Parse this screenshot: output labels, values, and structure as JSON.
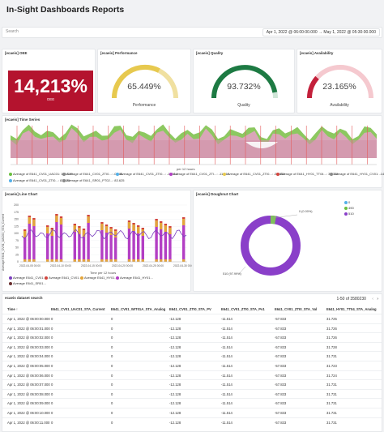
{
  "header": {
    "title": "In-Sight Dashboards Reports"
  },
  "filter": {
    "search_placeholder": "Search",
    "date_from": "Apr 1, 2022 @ 06:00:00.000",
    "arrow": "→",
    "date_to": "May 1, 2022 @ 05:30:00.000"
  },
  "oee": {
    "title": "[ecaeis] OEE",
    "value": "14,213%",
    "label": "OEE"
  },
  "gauges": [
    {
      "title": "[ecaeis] Performance",
      "value": "65.449%",
      "label": "Performance",
      "fraction": 0.65,
      "color": "#f0e0a0",
      "accent": "#e7c94f"
    },
    {
      "title": "[ecaeis] Quality",
      "value": "93.732%",
      "label": "Quality",
      "fraction": 0.94,
      "color": "#1d7a43",
      "accent": "#1d7a43"
    },
    {
      "title": "[ecaeis] Availability",
      "value": "23.165%",
      "label": "Availability",
      "fraction": 0.23,
      "color": "#f5c9cf",
      "accent": "#c3203b"
    }
  ],
  "timeseries": {
    "title": "[ecaeis] Time Series",
    "xlabel": "per 12 hours",
    "legend": [
      "Average of E641_CV01_UAC01: 129.078",
      "Average of E641_CV01_ZTI0...: -0.886",
      "Average of E641_CV01_ZTI0...: -11.514",
      "Average of E641_CV01_ZTI...: -11.514",
      "Average of E641_CV01_ZTI0...: -57.833",
      "Average of E641_HY01_TT04...: 31.725",
      "Average of E641_HY01_CV01: -14.033",
      "Average of E641_CV01_ZTI0...: 83.625",
      "Average of E641_SR01_PT02...: 83.625"
    ]
  },
  "linechart": {
    "title": "[ecaeis] Line Chart",
    "ylabel": "Average E641_CV01_UAC01_STA_Current",
    "xlabel": "Time per 12 hours",
    "ticks": [
      "2022-04-05 00:00",
      "2022-04-10 00:00",
      "2022-04-15 00:00",
      "2022-04-20 00:00",
      "2022-04-25 00:00",
      "2022-04-30 00:00"
    ],
    "yticks": [
      "200",
      "175",
      "150",
      "125",
      "100",
      "75",
      "50",
      "25",
      "0"
    ],
    "legend": [
      "Average E641_CV01...",
      "Average E641_CV01...",
      "Average E641_HY01...",
      "Average E641_HY01...",
      "Average E641_SR01..."
    ]
  },
  "doughnut": {
    "title": "[ecaeis] Doughnut Chart",
    "legend": [
      "0",
      "490",
      "510"
    ],
    "label_top": "0 (0.00%)",
    "label_left": "510 (97.99%)"
  },
  "table": {
    "title": "ecaeis dataset search",
    "pager": "1-50 of 3580230",
    "headers": [
      "Time ↑",
      "E641_CV01_UAC01_STA_Current",
      "E641_CV01_WIT01A_STA_Analog",
      "E641_CV01_ZTI0_STA_PV",
      "E641_CV01_ZTI0_STA_Pv1",
      "E641_CV01_ZTI0_STA_Val",
      "E641_HY01_TT04_STA_Analog"
    ],
    "rows": [
      [
        "Apr 1, 2022 @ 06:00:00.000",
        "0",
        "0",
        "-12.128",
        "-11.514",
        "-57.833",
        "31.725"
      ],
      [
        "Apr 1, 2022 @ 06:00:01.000",
        "0",
        "0",
        "-12.128",
        "-11.514",
        "-57.833",
        "31.726"
      ],
      [
        "Apr 1, 2022 @ 06:00:02.000",
        "0",
        "0",
        "-12.128",
        "-11.514",
        "-57.833",
        "31.726"
      ],
      [
        "Apr 1, 2022 @ 06:00:03.000",
        "0",
        "0",
        "-12.128",
        "-11.514",
        "-57.833",
        "31.728"
      ],
      [
        "Apr 1, 2022 @ 06:00:04.000",
        "0",
        "0",
        "-12.128",
        "-11.514",
        "-57.833",
        "31.731"
      ],
      [
        "Apr 1, 2022 @ 06:00:05.000",
        "0",
        "0",
        "-12.128",
        "-11.514",
        "-57.833",
        "31.723"
      ],
      [
        "Apr 1, 2022 @ 06:00:06.000",
        "0",
        "0",
        "-12.128",
        "-11.514",
        "-57.833",
        "31.724"
      ],
      [
        "Apr 1, 2022 @ 06:00:07.000",
        "0",
        "0",
        "-12.128",
        "-11.514",
        "-57.833",
        "31.731"
      ],
      [
        "Apr 1, 2022 @ 06:00:08.000",
        "0",
        "0",
        "-12.128",
        "-11.514",
        "-57.833",
        "31.731"
      ],
      [
        "Apr 1, 2022 @ 06:00:09.000",
        "0",
        "0",
        "-12.128",
        "-11.514",
        "-57.833",
        "31.731"
      ],
      [
        "Apr 1, 2022 @ 06:00:10.000",
        "0",
        "0",
        "-12.128",
        "-11.514",
        "-57.833",
        "31.731"
      ],
      [
        "Apr 1, 2022 @ 06:00:11.000",
        "0",
        "0",
        "-12.128",
        "-11.514",
        "-57.833",
        "31.731"
      ]
    ]
  },
  "colors": {
    "oee": "#b4132e",
    "line_purple": "#7b3fbf",
    "bar_purple": "#b33fc4",
    "bar_orange": "#e3a53b",
    "bar_red": "#d2453e",
    "green": "#6abf40",
    "pink_band": "#d9a6b8"
  }
}
